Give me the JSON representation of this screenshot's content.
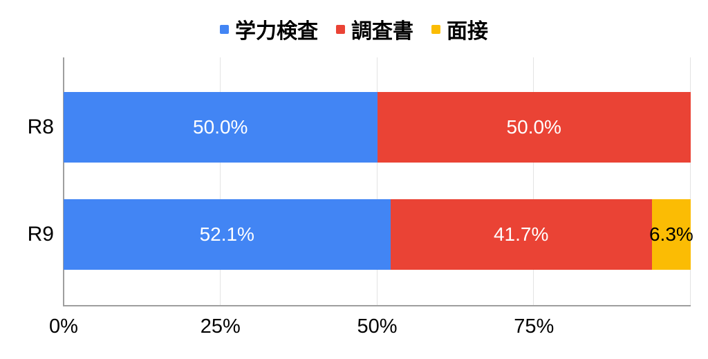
{
  "chart_data": {
    "type": "bar",
    "orientation": "horizontal",
    "stacked": true,
    "title": "",
    "xlabel": "",
    "ylabel": "",
    "categories": [
      "R8",
      "R9"
    ],
    "series": [
      {
        "name": "学力検査",
        "color": "#4285F4",
        "label_color": "#ffffff",
        "values": [
          50.0,
          52.1
        ],
        "labels": [
          "50.0%",
          "52.1%"
        ]
      },
      {
        "name": "調査書",
        "color": "#EA4335",
        "label_color": "#ffffff",
        "values": [
          50.0,
          41.7
        ],
        "labels": [
          "50.0%",
          "41.7%"
        ]
      },
      {
        "name": "面接",
        "color": "#FBBC04",
        "label_color": "#000000",
        "values": [
          0,
          6.3
        ],
        "labels": [
          "",
          "6.3%"
        ]
      }
    ],
    "xlim": [
      0,
      100
    ],
    "xticks": [
      {
        "label": "0%",
        "pos": 0
      },
      {
        "label": "25%",
        "pos": 25
      },
      {
        "label": "50%",
        "pos": 50
      },
      {
        "label": "75%",
        "pos": 75
      }
    ],
    "gridlines": [
      25,
      50,
      75,
      100
    ],
    "grid": true,
    "legend_position": "top"
  },
  "colors": {
    "background": "#ffffff",
    "axis": "#9e9e9e",
    "gridline": "#e3e3e3",
    "text": "#000000"
  }
}
